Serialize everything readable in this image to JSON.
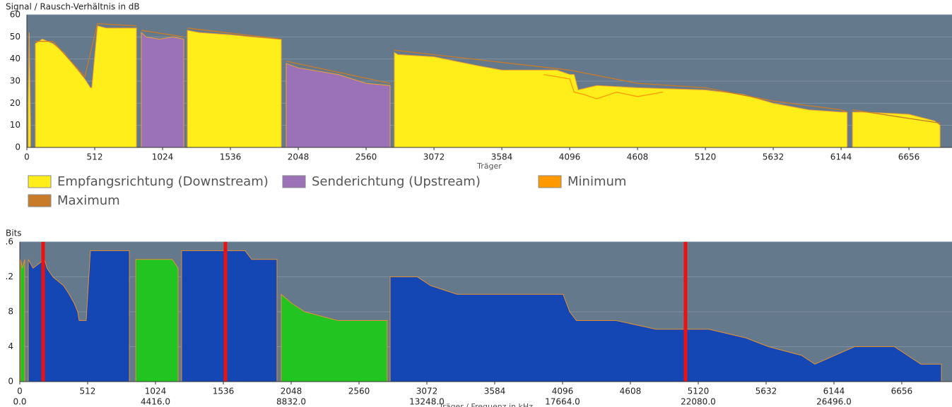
{
  "chart_data": [
    {
      "type": "area",
      "title": "Signal / Rausch-Verhältnis in dB",
      "x_label": "Träger",
      "xlim": [
        0,
        6981
      ],
      "xticks": [
        0,
        512,
        1024,
        1536,
        2048,
        2560,
        3072,
        3584,
        4096,
        4608,
        5120,
        5632,
        6144,
        6656
      ],
      "ylim": [
        0,
        60
      ],
      "yticks": [
        0,
        10,
        20,
        30,
        40,
        50,
        60
      ],
      "grid": true,
      "series": [
        {
          "name": "Empfangsrichtung (Downstream)",
          "color": "#ffee1a",
          "stroke": "#f0a030",
          "x": [
            10,
            18,
            28,
            40,
            64,
            117,
            197,
            277,
            357,
            437,
            480,
            490,
            533,
            600,
            700,
            827,
            850,
            1211,
            1300,
            1536,
            1700,
            1900,
            1920,
            1940,
            2773,
            2800,
            3072,
            3400,
            3584,
            4000,
            4096,
            4130,
            4160,
            4300,
            4608,
            5120,
            5400,
            5632,
            5900,
            6144,
            6190,
            6210,
            6230,
            6300,
            6656,
            6850,
            6891
          ],
          "values": [
            20,
            52,
            10,
            null,
            47,
            49,
            47,
            43,
            37,
            31,
            27,
            27,
            55,
            54,
            54,
            54,
            null,
            53,
            52,
            51,
            50,
            49,
            49,
            null,
            43,
            42,
            41,
            37,
            35,
            35,
            33,
            33,
            26,
            28,
            27,
            26,
            24,
            20,
            17,
            16,
            16,
            null,
            16,
            16,
            15,
            12,
            10
          ]
        },
        {
          "name": "Senderichtung (Upstream)",
          "color": "#9b72b8",
          "stroke": "#f0a030",
          "x": [
            864,
            900,
            1000,
            1100,
            1184,
            1220,
            1957,
            2048,
            2350,
            2560,
            2741
          ],
          "values": [
            52,
            50,
            49,
            50,
            49,
            null,
            38,
            36,
            33,
            29,
            28
          ]
        },
        {
          "name": "Minimum",
          "color": "#ff9900",
          "line": true,
          "x": [
            3900,
            4096,
            4130,
            4200,
            4300,
            4450,
            4608,
            4800
          ],
          "values": [
            33,
            31,
            25,
            24,
            22,
            25,
            23,
            25
          ]
        },
        {
          "name": "Maximum",
          "color": "#c87b28",
          "line": true,
          "x": [
            64,
            197,
            437,
            533,
            827,
            840,
            864,
            1184,
            1200,
            1211,
            1920,
            1940,
            1957,
            2741,
            2760,
            2773,
            4096,
            4608,
            5120,
            5632,
            6144,
            6190,
            6210,
            6230,
            6891
          ],
          "values": [
            48,
            48,
            32,
            56,
            55,
            null,
            53,
            50,
            null,
            54,
            49,
            null,
            39,
            29,
            null,
            44,
            35,
            29,
            27,
            21,
            17,
            16,
            null,
            17,
            11
          ]
        }
      ]
    },
    {
      "type": "area",
      "title": "Bits",
      "x_label": "Träger / Frequenz in kHz",
      "xlim": [
        0,
        7035
      ],
      "xticks": [
        0,
        512,
        1024,
        1536,
        2048,
        2560,
        3072,
        3584,
        4096,
        4608,
        5120,
        5632,
        6144,
        6656
      ],
      "x2lim": [
        0,
        30338
      ],
      "x2ticks": [
        {
          "value": 0,
          "label": "0.0"
        },
        {
          "value": 4416,
          "label": "4416.0"
        },
        {
          "value": 8832,
          "label": "8832.0"
        },
        {
          "value": 13248,
          "label": "13248.0"
        },
        {
          "value": 17664,
          "label": "17664.0"
        },
        {
          "value": 22080,
          "label": "22080.0"
        },
        {
          "value": 26496,
          "label": "26496.0"
        }
      ],
      "ylim": [
        0,
        16
      ],
      "yticks": [
        0,
        4,
        8,
        {
          "value": 12,
          "label": ".2"
        },
        {
          "value": 16,
          "label": ".6"
        }
      ],
      "grid": true,
      "markers": [
        176,
        1552,
        5024
      ],
      "marker_color": "#ee1111",
      "series": [
        {
          "color": "#1446b4",
          "stroke": "#e39032",
          "x": [
            64,
            100,
            187,
            205,
            250,
            330,
            373,
            410,
            437,
            448,
            501,
            533,
            827,
            850,
            1221,
            1700,
            1750,
            1941,
            1960,
            2795,
            3000,
            3100,
            3300,
            4100,
            4150,
            4200,
            4500,
            4800,
            5200,
            5480,
            5650,
            5900,
            6000,
            6300,
            6600,
            6700,
            6800,
            6955
          ],
          "values": [
            14,
            13,
            14,
            13,
            12,
            11,
            10,
            9,
            8,
            7,
            7,
            15,
            15,
            null,
            15,
            15,
            14,
            14,
            null,
            12,
            12,
            11,
            10,
            10,
            8,
            7,
            7,
            6,
            6,
            5,
            4,
            3,
            2,
            4,
            4,
            3,
            2,
            2
          ]
        },
        {
          "color": "#22c422",
          "stroke": "#e39032",
          "x": [
            5,
            20,
            37,
            50,
            875,
            1150,
            1195,
            1210,
            1973,
            2050,
            2150,
            2400,
            2773
          ],
          "values": [
            14,
            13,
            14,
            null,
            14,
            14,
            13,
            null,
            10,
            9,
            8,
            7,
            7
          ]
        }
      ]
    }
  ]
}
